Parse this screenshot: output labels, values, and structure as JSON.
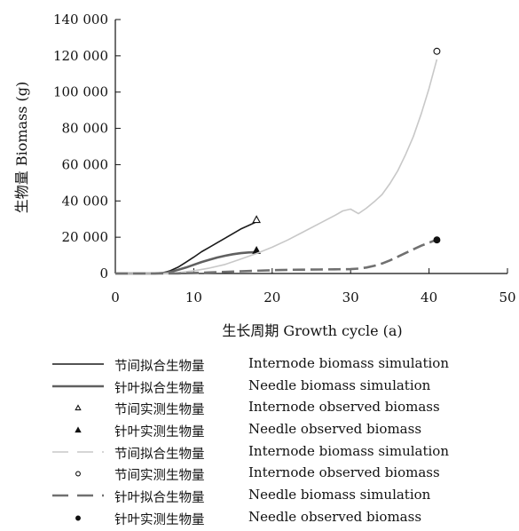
{
  "chart_data": {
    "type": "line",
    "title": "",
    "xlabel": "生长周期 Growth cycle (a)",
    "ylabel": "生物量 Biomass (g)",
    "xlim": [
      0,
      50
    ],
    "ylim": [
      0,
      140000
    ],
    "x_ticks": [
      0,
      10,
      20,
      30,
      40,
      50
    ],
    "y_ticks": [
      0,
      20000,
      40000,
      60000,
      80000,
      100000,
      120000,
      140000
    ],
    "y_tick_labels": [
      "0",
      "20 000",
      "40 000",
      "60 000",
      "80 000",
      "100 000",
      "120 000",
      "140 000"
    ],
    "grid": false,
    "legend_position": "bottom",
    "series": [
      {
        "name": "节间拟合生物量 Internode biomass simulation",
        "name_zh": "节间拟合生物量",
        "name_en": "Internode biomass simulation",
        "style": "solid-thin",
        "color": "#1a1a1a",
        "x": [
          0,
          5,
          6,
          7,
          8,
          9,
          10,
          11,
          12,
          13,
          14,
          15,
          16,
          17,
          18
        ],
        "y": [
          0,
          0,
          300,
          1500,
          3500,
          6200,
          9000,
          12000,
          14500,
          17000,
          19500,
          22000,
          24500,
          26500,
          28500
        ]
      },
      {
        "name": "针叶拟合生物量 Needle biomass simulation",
        "name_zh": "针叶拟合生物量",
        "name_en": "Needle biomass simulation",
        "style": "solid-thick",
        "color": "#606060",
        "x": [
          0,
          5,
          6,
          7,
          8,
          9,
          10,
          11,
          12,
          13,
          14,
          15,
          16,
          17,
          18
        ],
        "y": [
          0,
          0,
          200,
          900,
          2000,
          3300,
          4800,
          6300,
          7600,
          8800,
          9800,
          10600,
          11200,
          11600,
          11800
        ]
      },
      {
        "name": "节间实测生物量 Internode observed biomass",
        "name_zh": "节间实测生物量",
        "name_en": "Internode observed biomass",
        "style": "marker-open-triangle",
        "color": "#1a1a1a",
        "x": [
          18
        ],
        "y": [
          29500
        ]
      },
      {
        "name": "针叶实测生物量 Needle observed biomass",
        "name_zh": "针叶实测生物量",
        "name_en": "Needle observed biomass",
        "style": "marker-filled-triangle",
        "color": "#1a1a1a",
        "x": [
          18
        ],
        "y": [
          12500
        ]
      },
      {
        "name": "节间拟合生物量 Internode biomass simulation",
        "name_zh": "节间拟合生物量",
        "name_en": "Internode biomass simulation",
        "style": "dash-light",
        "color": "#c8c8c8",
        "x": [
          0,
          6,
          8,
          10,
          12,
          14,
          16,
          18,
          20,
          22,
          24,
          26,
          28,
          29,
          30,
          31,
          32,
          33,
          34,
          35,
          36,
          37,
          38,
          39,
          40,
          41
        ],
        "y": [
          0,
          0,
          500,
          1500,
          3000,
          5000,
          8000,
          11000,
          14500,
          18500,
          23000,
          27500,
          32000,
          34500,
          35500,
          33000,
          36000,
          39500,
          43500,
          49500,
          56500,
          65500,
          75500,
          88000,
          102000,
          118000
        ]
      },
      {
        "name": "节间实测生物量 Internode observed biomass",
        "name_zh": "节间实测生物量",
        "name_en": "Internode observed biomass",
        "style": "marker-open-circle",
        "color": "#1a1a1a",
        "x": [
          41
        ],
        "y": [
          122500
        ]
      },
      {
        "name": "针叶拟合生物量 Needle biomass simulation",
        "name_zh": "针叶拟合生物量",
        "name_en": "Needle biomass simulation",
        "style": "dash-thick",
        "color": "#707070",
        "x": [
          0,
          8,
          10,
          12,
          14,
          16,
          18,
          20,
          22,
          24,
          26,
          28,
          30,
          31,
          32,
          33,
          34,
          35,
          36,
          37,
          38,
          39,
          40,
          41
        ],
        "y": [
          0,
          0,
          300,
          600,
          900,
          1200,
          1500,
          1800,
          2000,
          2100,
          2200,
          2300,
          2400,
          2700,
          3300,
          4200,
          5500,
          7200,
          9200,
          11300,
          13300,
          15300,
          17000,
          18700
        ]
      },
      {
        "name": "针叶实测生物量 Needle observed biomass",
        "name_zh": "针叶实测生物量",
        "name_en": "Needle observed biomass",
        "style": "marker-filled-circle",
        "color": "#1a1a1a",
        "x": [
          41
        ],
        "y": [
          18500
        ]
      }
    ]
  }
}
